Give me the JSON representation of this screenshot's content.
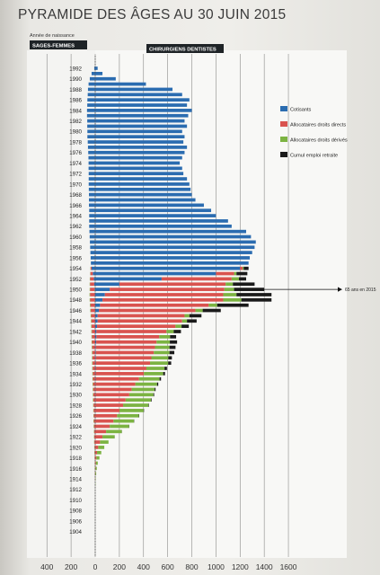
{
  "title": "PYRAMIDE DES ÂGES AU 30 JUIN 2015",
  "chart_data": {
    "type": "bar",
    "orientation": "horizontal",
    "subtitle": "Année de naissance",
    "left_group_label": "SAGES-FEMMES",
    "right_group_label": "CHIRURGIENS DENTISTES",
    "xlim": [
      -400,
      1600
    ],
    "x_ticks": [
      -400,
      -200,
      0,
      200,
      400,
      600,
      800,
      1000,
      1200,
      1400,
      1600
    ],
    "x_tick_labels": [
      "400",
      "200",
      "0",
      "200",
      "400",
      "600",
      "800",
      "1000",
      "1200",
      "1400",
      "1600"
    ],
    "y_range": [
      1904,
      1993
    ],
    "y_ticks": [
      1992,
      1990,
      1988,
      1986,
      1984,
      1982,
      1980,
      1978,
      1976,
      1974,
      1972,
      1970,
      1968,
      1966,
      1964,
      1962,
      1960,
      1958,
      1956,
      1954,
      1952,
      1950,
      1948,
      1946,
      1944,
      1942,
      1940,
      1938,
      1936,
      1934,
      1932,
      1930,
      1928,
      1926,
      1924,
      1922,
      1920,
      1918,
      1916,
      1914,
      1912,
      1910,
      1908,
      1906,
      1904
    ],
    "legend_position": "top-right",
    "annotation": {
      "text": "65 ans en 2015",
      "year": 1950
    },
    "series": [
      {
        "name": "Cotisants",
        "color": "#2b6cb0"
      },
      {
        "name": "Allocataires droits directs",
        "color": "#d9534f"
      },
      {
        "name": "Allocataires droits dérivés",
        "color": "#7cb342"
      },
      {
        "name": "Cumul emploi retraite",
        "color": "#1a1a1a"
      }
    ],
    "right_rows": [
      {
        "year": 1992,
        "c": 20,
        "d": 0,
        "v": 0,
        "e": 0
      },
      {
        "year": 1991,
        "c": 60,
        "d": 0,
        "v": 0,
        "e": 0
      },
      {
        "year": 1990,
        "c": 170,
        "d": 0,
        "v": 0,
        "e": 0
      },
      {
        "year": 1989,
        "c": 420,
        "d": 0,
        "v": 0,
        "e": 0
      },
      {
        "year": 1988,
        "c": 640,
        "d": 0,
        "v": 0,
        "e": 0
      },
      {
        "year": 1987,
        "c": 720,
        "d": 0,
        "v": 0,
        "e": 0
      },
      {
        "year": 1986,
        "c": 780,
        "d": 0,
        "v": 0,
        "e": 0
      },
      {
        "year": 1985,
        "c": 760,
        "d": 0,
        "v": 0,
        "e": 0
      },
      {
        "year": 1984,
        "c": 800,
        "d": 0,
        "v": 0,
        "e": 0
      },
      {
        "year": 1983,
        "c": 770,
        "d": 0,
        "v": 0,
        "e": 0
      },
      {
        "year": 1982,
        "c": 740,
        "d": 0,
        "v": 0,
        "e": 0
      },
      {
        "year": 1981,
        "c": 760,
        "d": 0,
        "v": 0,
        "e": 0
      },
      {
        "year": 1980,
        "c": 720,
        "d": 0,
        "v": 0,
        "e": 0
      },
      {
        "year": 1979,
        "c": 740,
        "d": 0,
        "v": 0,
        "e": 0
      },
      {
        "year": 1978,
        "c": 730,
        "d": 0,
        "v": 0,
        "e": 0
      },
      {
        "year": 1977,
        "c": 760,
        "d": 0,
        "v": 0,
        "e": 0
      },
      {
        "year": 1976,
        "c": 740,
        "d": 0,
        "v": 0,
        "e": 0
      },
      {
        "year": 1975,
        "c": 720,
        "d": 0,
        "v": 0,
        "e": 0
      },
      {
        "year": 1974,
        "c": 700,
        "d": 0,
        "v": 0,
        "e": 0
      },
      {
        "year": 1973,
        "c": 720,
        "d": 0,
        "v": 0,
        "e": 0
      },
      {
        "year": 1972,
        "c": 730,
        "d": 0,
        "v": 0,
        "e": 0
      },
      {
        "year": 1971,
        "c": 760,
        "d": 0,
        "v": 0,
        "e": 0
      },
      {
        "year": 1970,
        "c": 780,
        "d": 0,
        "v": 0,
        "e": 0
      },
      {
        "year": 1969,
        "c": 790,
        "d": 0,
        "v": 0,
        "e": 0
      },
      {
        "year": 1968,
        "c": 800,
        "d": 0,
        "v": 0,
        "e": 0
      },
      {
        "year": 1967,
        "c": 830,
        "d": 0,
        "v": 0,
        "e": 0
      },
      {
        "year": 1966,
        "c": 900,
        "d": 0,
        "v": 0,
        "e": 0
      },
      {
        "year": 1965,
        "c": 960,
        "d": 0,
        "v": 0,
        "e": 0
      },
      {
        "year": 1964,
        "c": 1000,
        "d": 0,
        "v": 0,
        "e": 0
      },
      {
        "year": 1963,
        "c": 1100,
        "d": 0,
        "v": 0,
        "e": 0
      },
      {
        "year": 1962,
        "c": 1130,
        "d": 0,
        "v": 0,
        "e": 0
      },
      {
        "year": 1961,
        "c": 1250,
        "d": 0,
        "v": 0,
        "e": 0
      },
      {
        "year": 1960,
        "c": 1290,
        "d": 0,
        "v": 0,
        "e": 0
      },
      {
        "year": 1959,
        "c": 1330,
        "d": 0,
        "v": 0,
        "e": 0
      },
      {
        "year": 1958,
        "c": 1320,
        "d": 0,
        "v": 0,
        "e": 0
      },
      {
        "year": 1957,
        "c": 1300,
        "d": 0,
        "v": 0,
        "e": 0
      },
      {
        "year": 1956,
        "c": 1280,
        "d": 0,
        "v": 0,
        "e": 0
      },
      {
        "year": 1955,
        "c": 1270,
        "d": 0,
        "v": 0,
        "e": 0
      },
      {
        "year": 1954,
        "c": 1200,
        "d": 20,
        "v": 10,
        "e": 40
      },
      {
        "year": 1953,
        "c": 1000,
        "d": 150,
        "v": 20,
        "e": 90
      },
      {
        "year": 1952,
        "c": 550,
        "d": 580,
        "v": 60,
        "e": 60
      },
      {
        "year": 1951,
        "c": 200,
        "d": 880,
        "v": 60,
        "e": 180
      },
      {
        "year": 1950,
        "c": 120,
        "d": 950,
        "v": 80,
        "e": 250
      },
      {
        "year": 1949,
        "c": 80,
        "d": 980,
        "v": 110,
        "e": 290
      },
      {
        "year": 1948,
        "c": 60,
        "d": 1000,
        "v": 150,
        "e": 250
      },
      {
        "year": 1947,
        "c": 40,
        "d": 900,
        "v": 70,
        "e": 260
      },
      {
        "year": 1946,
        "c": 30,
        "d": 800,
        "v": 60,
        "e": 150
      },
      {
        "year": 1945,
        "c": 20,
        "d": 720,
        "v": 40,
        "e": 100
      },
      {
        "year": 1944,
        "c": 20,
        "d": 700,
        "v": 40,
        "e": 80
      },
      {
        "year": 1943,
        "c": 15,
        "d": 650,
        "v": 50,
        "e": 60
      },
      {
        "year": 1942,
        "c": 10,
        "d": 580,
        "v": 60,
        "e": 60
      },
      {
        "year": 1941,
        "c": 10,
        "d": 520,
        "v": 90,
        "e": 50
      },
      {
        "year": 1940,
        "c": 8,
        "d": 500,
        "v": 110,
        "e": 60
      },
      {
        "year": 1939,
        "c": 5,
        "d": 490,
        "v": 120,
        "e": 50
      },
      {
        "year": 1938,
        "c": 5,
        "d": 480,
        "v": 130,
        "e": 40
      },
      {
        "year": 1937,
        "c": 5,
        "d": 460,
        "v": 140,
        "e": 30
      },
      {
        "year": 1936,
        "c": 4,
        "d": 450,
        "v": 150,
        "e": 25
      },
      {
        "year": 1935,
        "c": 4,
        "d": 420,
        "v": 150,
        "e": 20
      },
      {
        "year": 1934,
        "c": 3,
        "d": 400,
        "v": 160,
        "e": 15
      },
      {
        "year": 1933,
        "c": 3,
        "d": 360,
        "v": 170,
        "e": 12
      },
      {
        "year": 1932,
        "c": 2,
        "d": 330,
        "v": 180,
        "e": 10
      },
      {
        "year": 1931,
        "c": 2,
        "d": 300,
        "v": 190,
        "e": 8
      },
      {
        "year": 1930,
        "c": 2,
        "d": 280,
        "v": 200,
        "e": 6
      },
      {
        "year": 1929,
        "c": 2,
        "d": 250,
        "v": 210,
        "e": 5
      },
      {
        "year": 1928,
        "c": 1,
        "d": 230,
        "v": 210,
        "e": 4
      },
      {
        "year": 1927,
        "c": 1,
        "d": 200,
        "v": 200,
        "e": 3
      },
      {
        "year": 1926,
        "c": 1,
        "d": 180,
        "v": 180,
        "e": 3
      },
      {
        "year": 1925,
        "c": 1,
        "d": 150,
        "v": 170,
        "e": 2
      },
      {
        "year": 1924,
        "c": 0,
        "d": 120,
        "v": 160,
        "e": 2
      },
      {
        "year": 1923,
        "c": 0,
        "d": 90,
        "v": 130,
        "e": 1
      },
      {
        "year": 1922,
        "c": 0,
        "d": 60,
        "v": 100,
        "e": 1
      },
      {
        "year": 1921,
        "c": 0,
        "d": 40,
        "v": 70,
        "e": 0
      },
      {
        "year": 1920,
        "c": 0,
        "d": 25,
        "v": 50,
        "e": 0
      },
      {
        "year": 1919,
        "c": 0,
        "d": 15,
        "v": 35,
        "e": 0
      },
      {
        "year": 1918,
        "c": 0,
        "d": 10,
        "v": 25,
        "e": 0
      },
      {
        "year": 1917,
        "c": 0,
        "d": 6,
        "v": 15,
        "e": 0
      },
      {
        "year": 1916,
        "c": 0,
        "d": 3,
        "v": 10,
        "e": 0
      },
      {
        "year": 1915,
        "c": 0,
        "d": 2,
        "v": 6,
        "e": 0
      },
      {
        "year": 1914,
        "c": 0,
        "d": 1,
        "v": 3,
        "e": 0
      },
      {
        "year": 1913,
        "c": 0,
        "d": 0,
        "v": 2,
        "e": 0
      }
    ],
    "left_rows": [
      {
        "year": 1992,
        "c": 8,
        "d": 0,
        "v": 0
      },
      {
        "year": 1991,
        "c": 30,
        "d": 0,
        "v": 0
      },
      {
        "year": 1990,
        "c": 45,
        "d": 0,
        "v": 0
      },
      {
        "year": 1989,
        "c": 55,
        "d": 0,
        "v": 0
      },
      {
        "year": 1988,
        "c": 60,
        "d": 0,
        "v": 0
      },
      {
        "year": 1987,
        "c": 62,
        "d": 0,
        "v": 0
      },
      {
        "year": 1986,
        "c": 65,
        "d": 0,
        "v": 0
      },
      {
        "year": 1985,
        "c": 66,
        "d": 0,
        "v": 0
      },
      {
        "year": 1984,
        "c": 68,
        "d": 0,
        "v": 0
      },
      {
        "year": 1983,
        "c": 68,
        "d": 0,
        "v": 0
      },
      {
        "year": 1982,
        "c": 66,
        "d": 0,
        "v": 0
      },
      {
        "year": 1981,
        "c": 66,
        "d": 0,
        "v": 0
      },
      {
        "year": 1980,
        "c": 65,
        "d": 0,
        "v": 0
      },
      {
        "year": 1979,
        "c": 65,
        "d": 0,
        "v": 0
      },
      {
        "year": 1978,
        "c": 62,
        "d": 0,
        "v": 0
      },
      {
        "year": 1977,
        "c": 60,
        "d": 0,
        "v": 0
      },
      {
        "year": 1976,
        "c": 58,
        "d": 0,
        "v": 0
      },
      {
        "year": 1975,
        "c": 56,
        "d": 0,
        "v": 0
      },
      {
        "year": 1974,
        "c": 55,
        "d": 0,
        "v": 0
      },
      {
        "year": 1973,
        "c": 55,
        "d": 0,
        "v": 0
      },
      {
        "year": 1972,
        "c": 54,
        "d": 0,
        "v": 0
      },
      {
        "year": 1971,
        "c": 54,
        "d": 0,
        "v": 0
      },
      {
        "year": 1970,
        "c": 54,
        "d": 0,
        "v": 0
      },
      {
        "year": 1969,
        "c": 53,
        "d": 0,
        "v": 0
      },
      {
        "year": 1968,
        "c": 52,
        "d": 0,
        "v": 0
      },
      {
        "year": 1967,
        "c": 52,
        "d": 0,
        "v": 0
      },
      {
        "year": 1966,
        "c": 52,
        "d": 0,
        "v": 0
      },
      {
        "year": 1965,
        "c": 50,
        "d": 0,
        "v": 0
      },
      {
        "year": 1964,
        "c": 50,
        "d": 0,
        "v": 0
      },
      {
        "year": 1963,
        "c": 50,
        "d": 0,
        "v": 0
      },
      {
        "year": 1962,
        "c": 50,
        "d": 0,
        "v": 0
      },
      {
        "year": 1961,
        "c": 48,
        "d": 0,
        "v": 0
      },
      {
        "year": 1960,
        "c": 46,
        "d": 0,
        "v": 0
      },
      {
        "year": 1959,
        "c": 44,
        "d": 0,
        "v": 0
      },
      {
        "year": 1958,
        "c": 42,
        "d": 0,
        "v": 0
      },
      {
        "year": 1957,
        "c": 40,
        "d": 0,
        "v": 0
      },
      {
        "year": 1956,
        "c": 38,
        "d": 0,
        "v": 0
      },
      {
        "year": 1955,
        "c": 36,
        "d": 0,
        "v": 0
      },
      {
        "year": 1954,
        "c": 30,
        "d": 8,
        "v": 2
      },
      {
        "year": 1953,
        "c": 20,
        "d": 20,
        "v": 2
      },
      {
        "year": 1952,
        "c": 12,
        "d": 30,
        "v": 3
      },
      {
        "year": 1951,
        "c": 8,
        "d": 35,
        "v": 3
      },
      {
        "year": 1950,
        "c": 5,
        "d": 38,
        "v": 3
      },
      {
        "year": 1949,
        "c": 3,
        "d": 40,
        "v": 4
      },
      {
        "year": 1948,
        "c": 2,
        "d": 40,
        "v": 4
      },
      {
        "year": 1947,
        "c": 2,
        "d": 38,
        "v": 4
      },
      {
        "year": 1946,
        "c": 1,
        "d": 36,
        "v": 4
      },
      {
        "year": 1945,
        "c": 1,
        "d": 33,
        "v": 4
      },
      {
        "year": 1944,
        "c": 1,
        "d": 31,
        "v": 4
      },
      {
        "year": 1943,
        "c": 0,
        "d": 30,
        "v": 4
      },
      {
        "year": 1942,
        "c": 0,
        "d": 28,
        "v": 4
      },
      {
        "year": 1941,
        "c": 0,
        "d": 27,
        "v": 4
      },
      {
        "year": 1940,
        "c": 0,
        "d": 26,
        "v": 4
      },
      {
        "year": 1939,
        "c": 0,
        "d": 25,
        "v": 4
      },
      {
        "year": 1938,
        "c": 0,
        "d": 24,
        "v": 4
      },
      {
        "year": 1937,
        "c": 0,
        "d": 23,
        "v": 4
      },
      {
        "year": 1936,
        "c": 0,
        "d": 22,
        "v": 4
      },
      {
        "year": 1935,
        "c": 0,
        "d": 21,
        "v": 4
      },
      {
        "year": 1934,
        "c": 0,
        "d": 20,
        "v": 4
      },
      {
        "year": 1933,
        "c": 0,
        "d": 19,
        "v": 4
      },
      {
        "year": 1932,
        "c": 0,
        "d": 18,
        "v": 4
      },
      {
        "year": 1931,
        "c": 0,
        "d": 17,
        "v": 4
      },
      {
        "year": 1930,
        "c": 0,
        "d": 16,
        "v": 4
      },
      {
        "year": 1929,
        "c": 0,
        "d": 15,
        "v": 4
      },
      {
        "year": 1928,
        "c": 0,
        "d": 14,
        "v": 3
      },
      {
        "year": 1927,
        "c": 0,
        "d": 13,
        "v": 3
      },
      {
        "year": 1926,
        "c": 0,
        "d": 12,
        "v": 3
      },
      {
        "year": 1925,
        "c": 0,
        "d": 11,
        "v": 3
      },
      {
        "year": 1924,
        "c": 0,
        "d": 10,
        "v": 3
      },
      {
        "year": 1923,
        "c": 0,
        "d": 9,
        "v": 2
      },
      {
        "year": 1922,
        "c": 0,
        "d": 8,
        "v": 2
      },
      {
        "year": 1921,
        "c": 0,
        "d": 7,
        "v": 2
      },
      {
        "year": 1920,
        "c": 0,
        "d": 6,
        "v": 2
      },
      {
        "year": 1919,
        "c": 0,
        "d": 5,
        "v": 2
      },
      {
        "year": 1918,
        "c": 0,
        "d": 4,
        "v": 1
      },
      {
        "year": 1917,
        "c": 0,
        "d": 3,
        "v": 1
      },
      {
        "year": 1916,
        "c": 0,
        "d": 2,
        "v": 1
      },
      {
        "year": 1915,
        "c": 0,
        "d": 2,
        "v": 1
      },
      {
        "year": 1914,
        "c": 0,
        "d": 1,
        "v": 0
      }
    ]
  }
}
